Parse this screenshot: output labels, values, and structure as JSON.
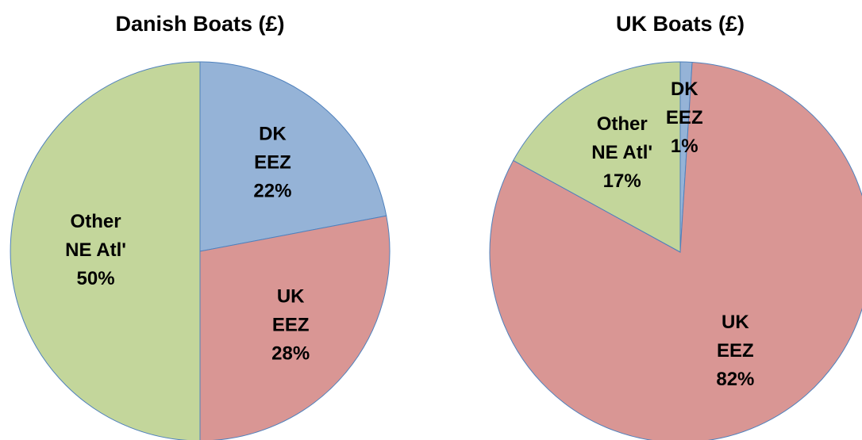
{
  "chart_data": [
    {
      "type": "pie",
      "title": "Danish Boats (£)",
      "categories": [
        "DK EEZ",
        "UK EEZ",
        "Other NE Atl'"
      ],
      "values": [
        22,
        28,
        50
      ],
      "value_labels": [
        "22%",
        "28%",
        "50%"
      ],
      "colors": [
        "#95b3d7",
        "#d99694",
        "#c3d69b"
      ]
    },
    {
      "type": "pie",
      "title": "UK Boats (£)",
      "categories": [
        "DK EEZ",
        "UK EEZ",
        "Other NE Atl'"
      ],
      "values": [
        1,
        82,
        17
      ],
      "value_labels": [
        "1%",
        "82%",
        "17%"
      ],
      "colors": [
        "#95b3d7",
        "#d99694",
        "#c3d69b"
      ]
    }
  ]
}
